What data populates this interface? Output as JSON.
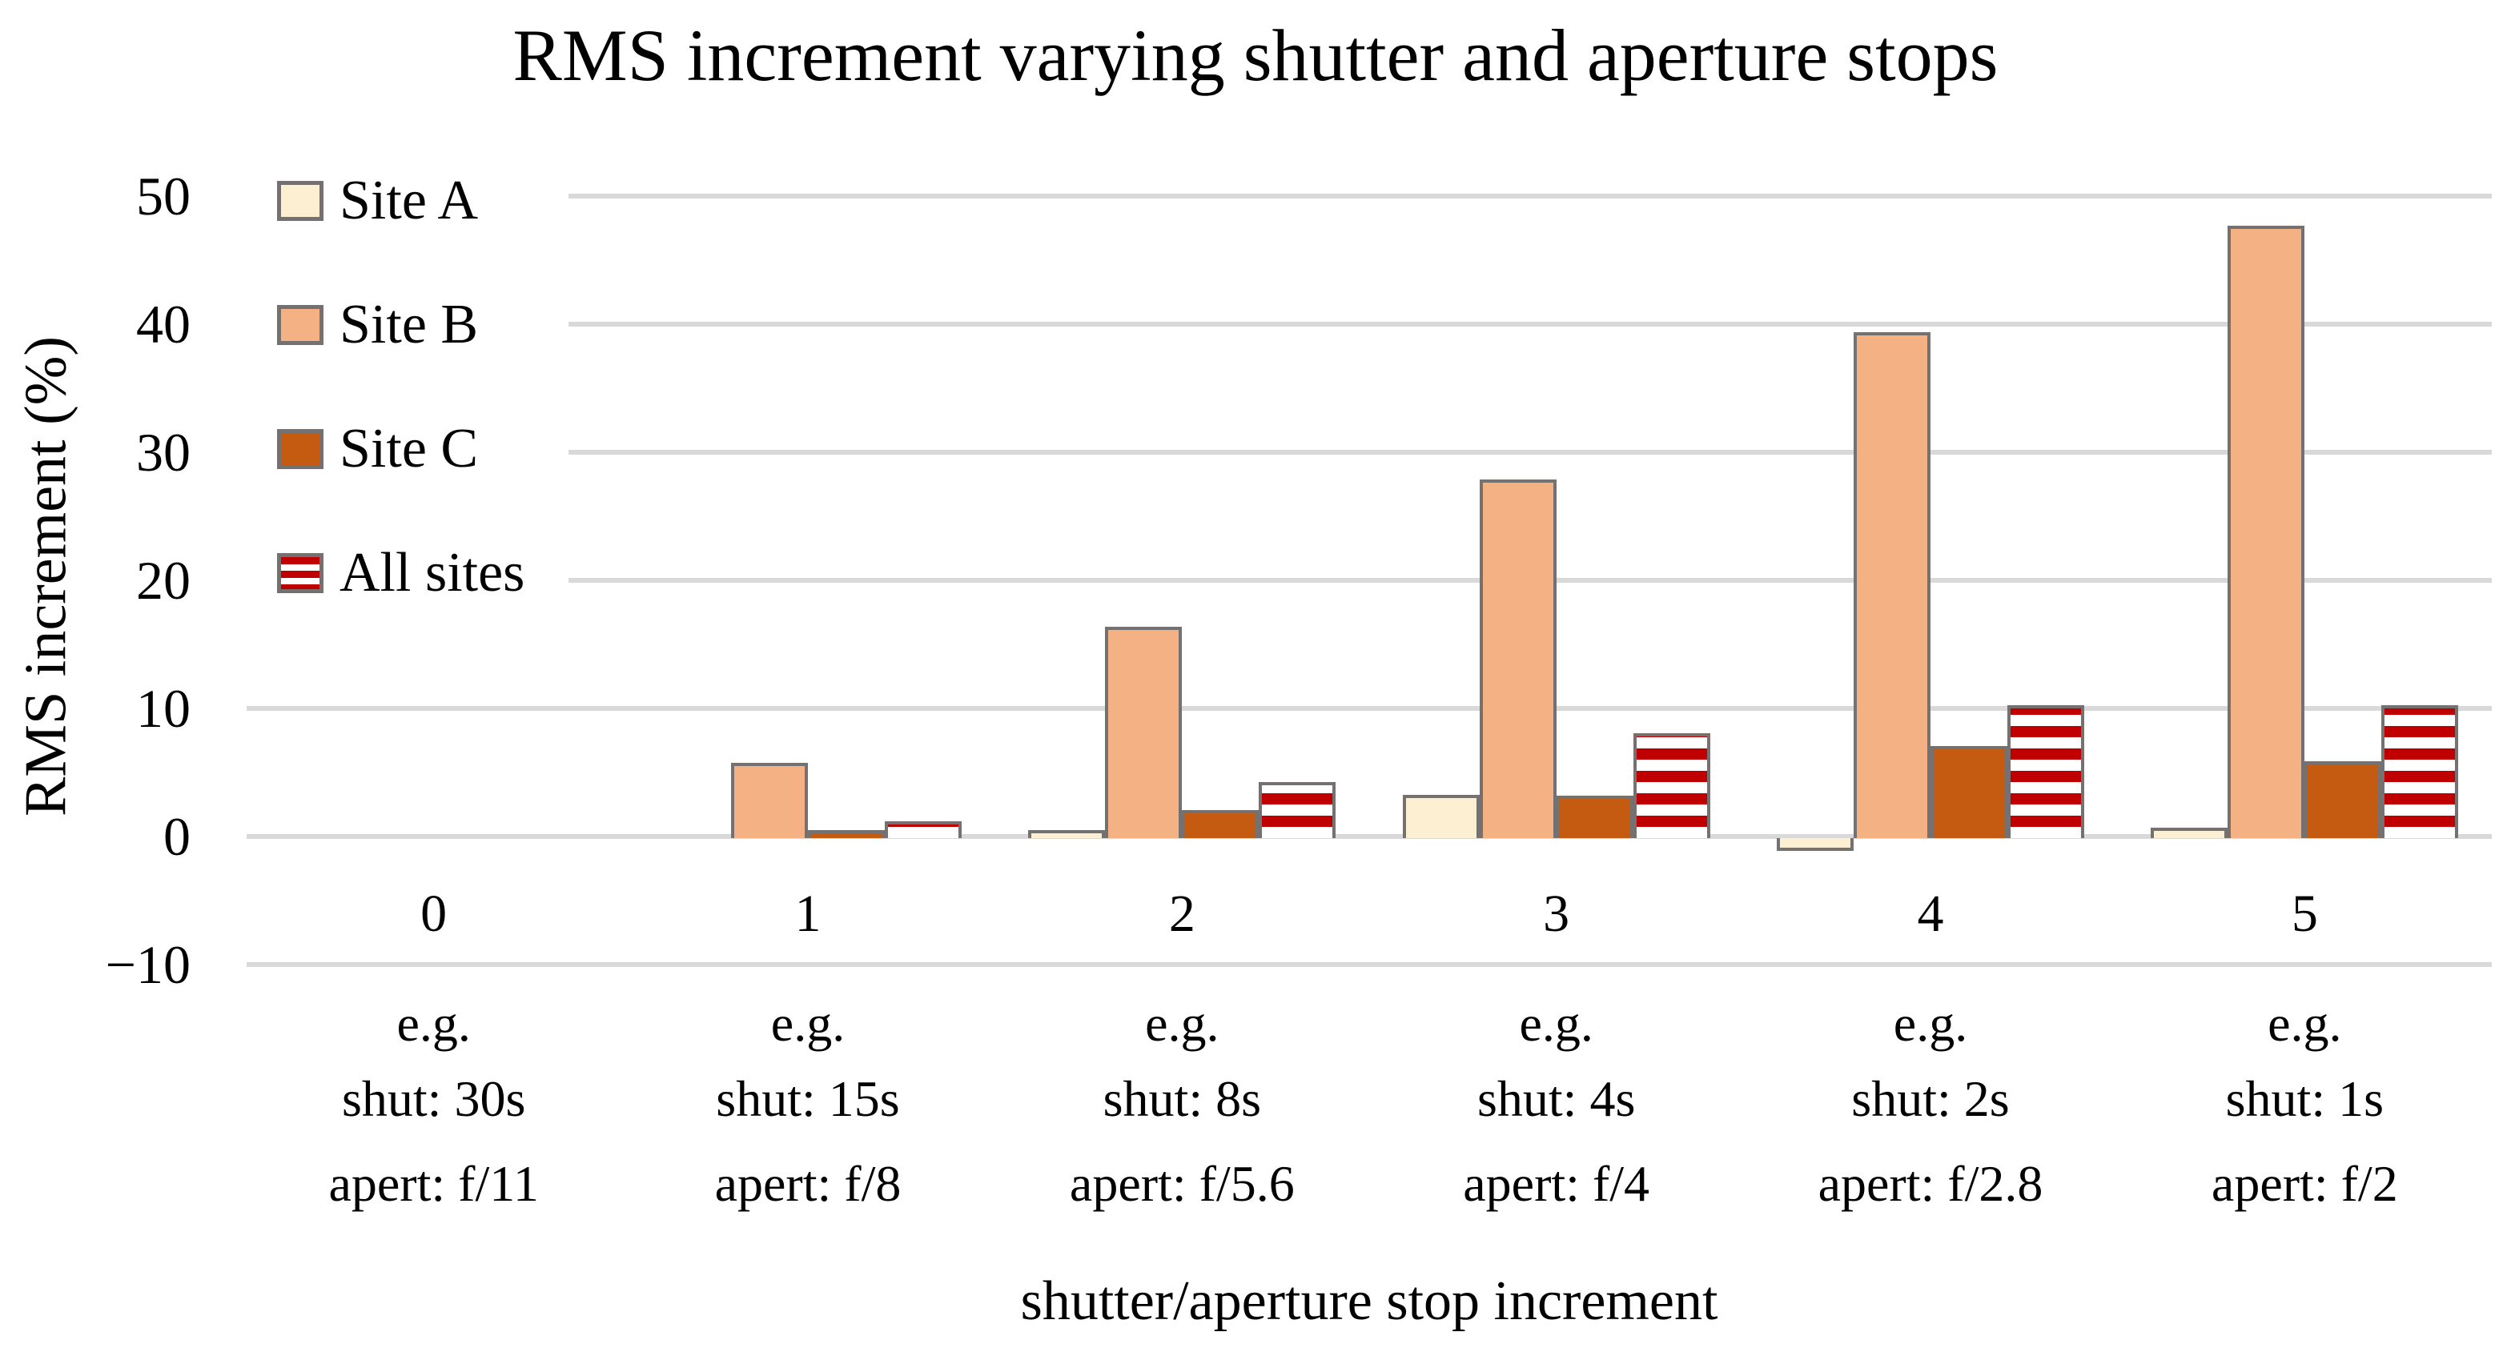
{
  "chart_data": {
    "type": "bar",
    "title": "RMS increment varying shutter and aperture stops",
    "xlabel": "shutter/aperture stop increment",
    "ylabel": "RMS increment (%)",
    "ylim": [
      -10,
      50
    ],
    "grid": true,
    "legend_position": "top-left-vertical",
    "yticks": [
      {
        "value": 50,
        "label": "50"
      },
      {
        "value": 40,
        "label": "40"
      },
      {
        "value": 30,
        "label": "30"
      },
      {
        "value": 20,
        "label": "20"
      },
      {
        "value": 10,
        "label": "10"
      },
      {
        "value": 0,
        "label": "0"
      },
      {
        "value": -10,
        "label": "−10"
      }
    ],
    "categories": [
      "0",
      "1",
      "2",
      "3",
      "4",
      "5"
    ],
    "category_sublabels": [
      [
        "e.g.",
        "shut: 30s",
        "apert: f/11"
      ],
      [
        "e.g.",
        "shut: 15s",
        "apert: f/8"
      ],
      [
        "e.g.",
        "shut: 8s",
        "apert: f/5.6"
      ],
      [
        "e.g.",
        "shut: 4s",
        "apert: f/4"
      ],
      [
        "e.g.",
        "shut: 2s",
        "apert: f/2.8"
      ],
      [
        "e.g.",
        "shut: 1s",
        "apert: f/2"
      ]
    ],
    "series": [
      {
        "name": "Site A",
        "pattern": "solid",
        "fill": "#FCEFD2",
        "values": [
          0,
          0,
          0.2,
          3.4,
          -1.0,
          0.8
        ]
      },
      {
        "name": "Site B",
        "pattern": "solid",
        "fill": "#F4B183",
        "values": [
          0,
          5.9,
          16.5,
          28.0,
          39.5,
          47.8
        ]
      },
      {
        "name": "Site C",
        "pattern": "solid",
        "fill": "#C55A11",
        "values": [
          0,
          0.3,
          2.2,
          3.3,
          7.2,
          6.0
        ]
      },
      {
        "name": "All sites",
        "pattern": "h-stripes",
        "fill": "#C00000",
        "values": [
          0,
          1.3,
          4.4,
          8.2,
          10.4,
          10.4
        ]
      }
    ],
    "colors": {
      "background": "#FFFFFF",
      "text": "#000000",
      "gridline": "#D9D9D9",
      "bar_outline": "#767171",
      "stripe_red": "#C00000",
      "stripe_white": "#FFFFFF"
    }
  }
}
